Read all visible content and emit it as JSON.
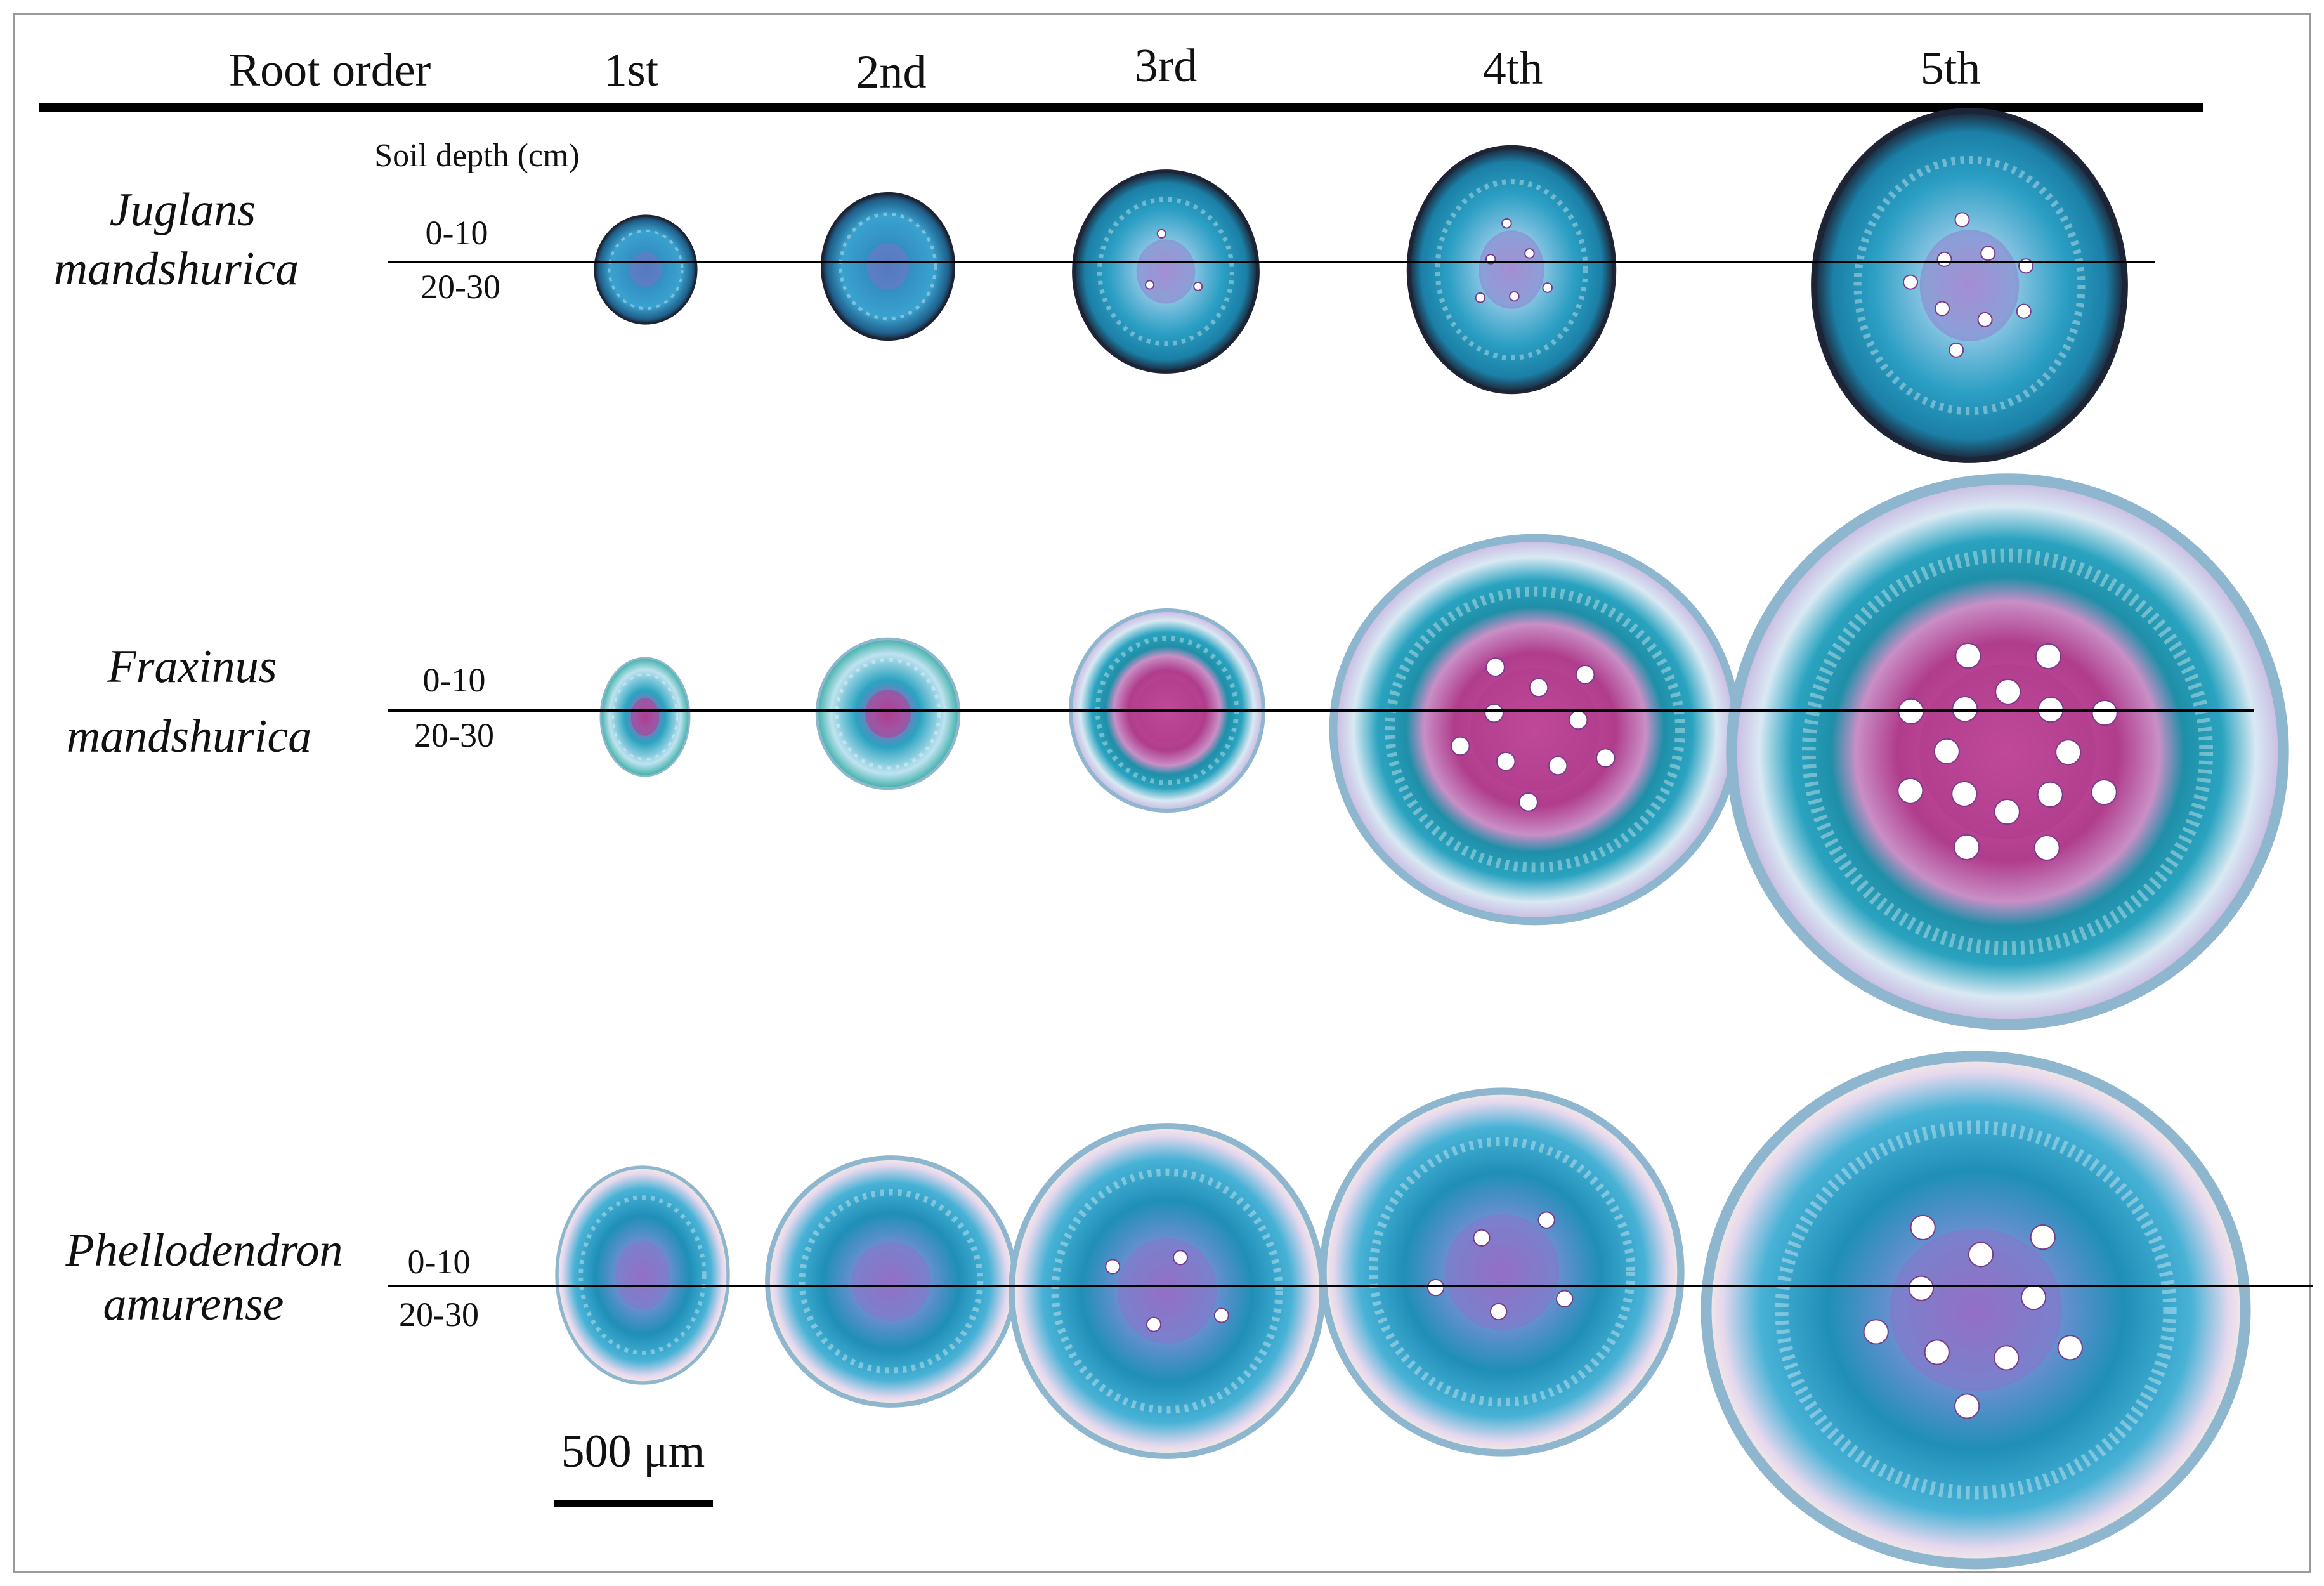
{
  "header": {
    "root_order_label": "Root order",
    "orders": [
      "1st",
      "2nd",
      "3rd",
      "4th",
      "5th"
    ]
  },
  "depth_title": "Soil depth (cm)",
  "depths": {
    "upper": "0-10",
    "lower": "20-30"
  },
  "species": [
    {
      "line1": "Juglans",
      "line2": "mandshurica",
      "sections": [
        {
          "order": "1st",
          "palette": "juglans",
          "xylem_vessels": 0
        },
        {
          "order": "2nd",
          "palette": "juglans",
          "xylem_vessels": 0
        },
        {
          "order": "3rd",
          "palette": "juglans",
          "xylem_vessels": 3
        },
        {
          "order": "4th",
          "palette": "juglans",
          "xylem_vessels": 6
        },
        {
          "order": "5th",
          "palette": "juglans",
          "xylem_vessels": 9
        }
      ]
    },
    {
      "line1": "Fraxinus",
      "line2": "mandshurica",
      "sections": [
        {
          "order": "1st",
          "palette": "fraxinus",
          "xylem_vessels": 0
        },
        {
          "order": "2nd",
          "palette": "fraxinus",
          "xylem_vessels": 0
        },
        {
          "order": "3rd",
          "palette": "fraxinus",
          "xylem_vessels": 0
        },
        {
          "order": "4th",
          "palette": "fraxinus",
          "xylem_vessels": 10
        },
        {
          "order": "5th",
          "palette": "fraxinus",
          "xylem_vessels": 16
        }
      ]
    },
    {
      "line1": "Phellodendron",
      "line2": "amurense",
      "sections": [
        {
          "order": "1st",
          "palette": "phellodendron",
          "xylem_vessels": 0
        },
        {
          "order": "2nd",
          "palette": "phellodendron",
          "xylem_vessels": 0
        },
        {
          "order": "3rd",
          "palette": "phellodendron",
          "xylem_vessels": 4
        },
        {
          "order": "4th",
          "palette": "phellodendron",
          "xylem_vessels": 5
        },
        {
          "order": "5th",
          "palette": "phellodendron",
          "xylem_vessels": 10
        }
      ]
    }
  ],
  "scale_bar": {
    "label": "500 μm"
  },
  "colors": {
    "rule": "#000000",
    "frame": "#9a9a9a",
    "stain_blue": "#2b9fc4",
    "stain_teal": "#1f8fa8",
    "stain_magenta": "#b03c8c",
    "stain_dark": "#1c2436",
    "cortex_light": "#cfe8f2",
    "periderm_pink": "#ead8ee"
  }
}
